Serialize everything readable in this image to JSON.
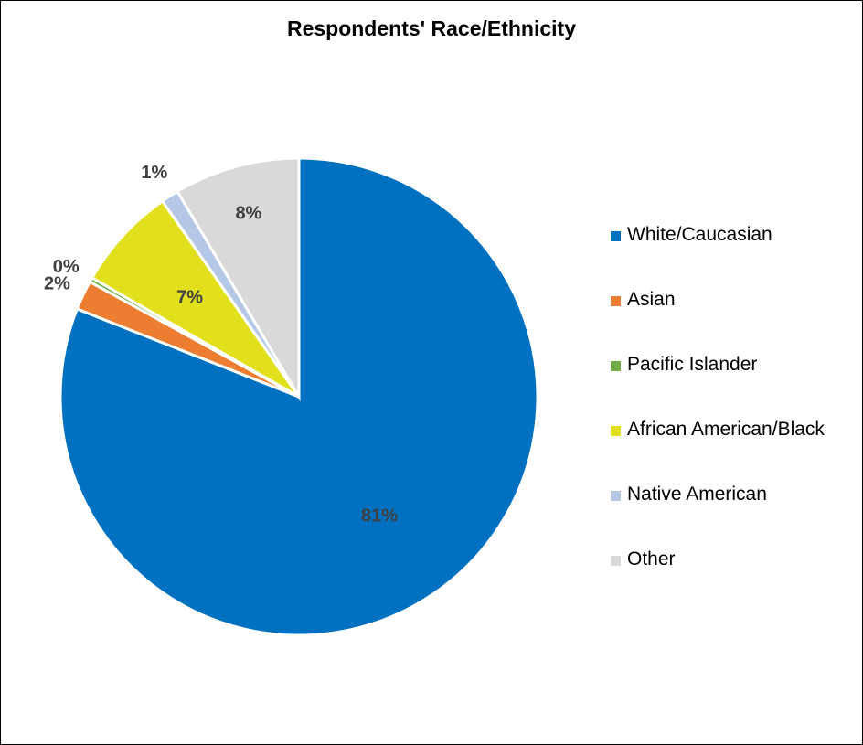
{
  "chart_data": {
    "type": "pie",
    "title": "Respondents' Race/Ethnicity",
    "categories": [
      "White/Caucasian",
      "Asian",
      "Pacific Islander",
      "African American/Black",
      "Native American",
      "Other"
    ],
    "values": [
      81,
      2,
      0.3,
      7,
      1.2,
      8.5
    ],
    "data_labels": [
      "81%",
      "2%",
      "0%",
      "7%",
      "1%",
      "8%"
    ],
    "colors": [
      "#0070C0",
      "#ED7D31",
      "#70AD47",
      "#E2E01C",
      "#B4C7E7",
      "#D9D9D9"
    ],
    "legend_position": "right",
    "start_angle": "top, clockwise"
  }
}
